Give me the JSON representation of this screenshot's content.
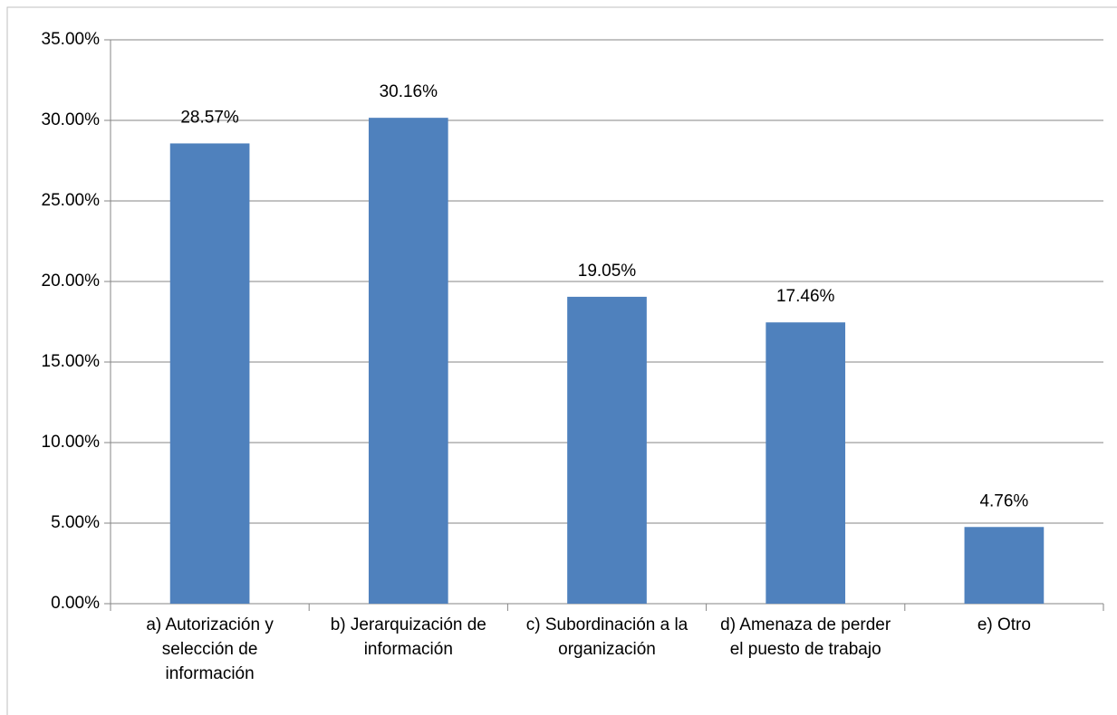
{
  "chart_data": {
    "type": "bar",
    "categories": [
      "a) Autorización y selección de información",
      "b) Jerarquización de información",
      "c) Subordinación a la organización",
      "d) Amenaza de perder el puesto de trabajo",
      "e) Otro"
    ],
    "values": [
      28.57,
      30.16,
      19.05,
      17.46,
      4.76
    ],
    "value_labels": [
      "28.57%",
      "30.16%",
      "19.05%",
      "17.46%",
      "4.76%"
    ],
    "color": "#4f81bd",
    "ylim": [
      0,
      35
    ],
    "yticks": [
      {
        "value": 0,
        "label": "0.00%"
      },
      {
        "value": 5,
        "label": "5.00%"
      },
      {
        "value": 10,
        "label": "10.00%"
      },
      {
        "value": 15,
        "label": "15.00%"
      },
      {
        "value": 20,
        "label": "20.00%"
      },
      {
        "value": 25,
        "label": "25.00%"
      },
      {
        "value": 30,
        "label": "30.00%"
      },
      {
        "value": 35,
        "label": "35.00%"
      }
    ],
    "grid": true
  }
}
